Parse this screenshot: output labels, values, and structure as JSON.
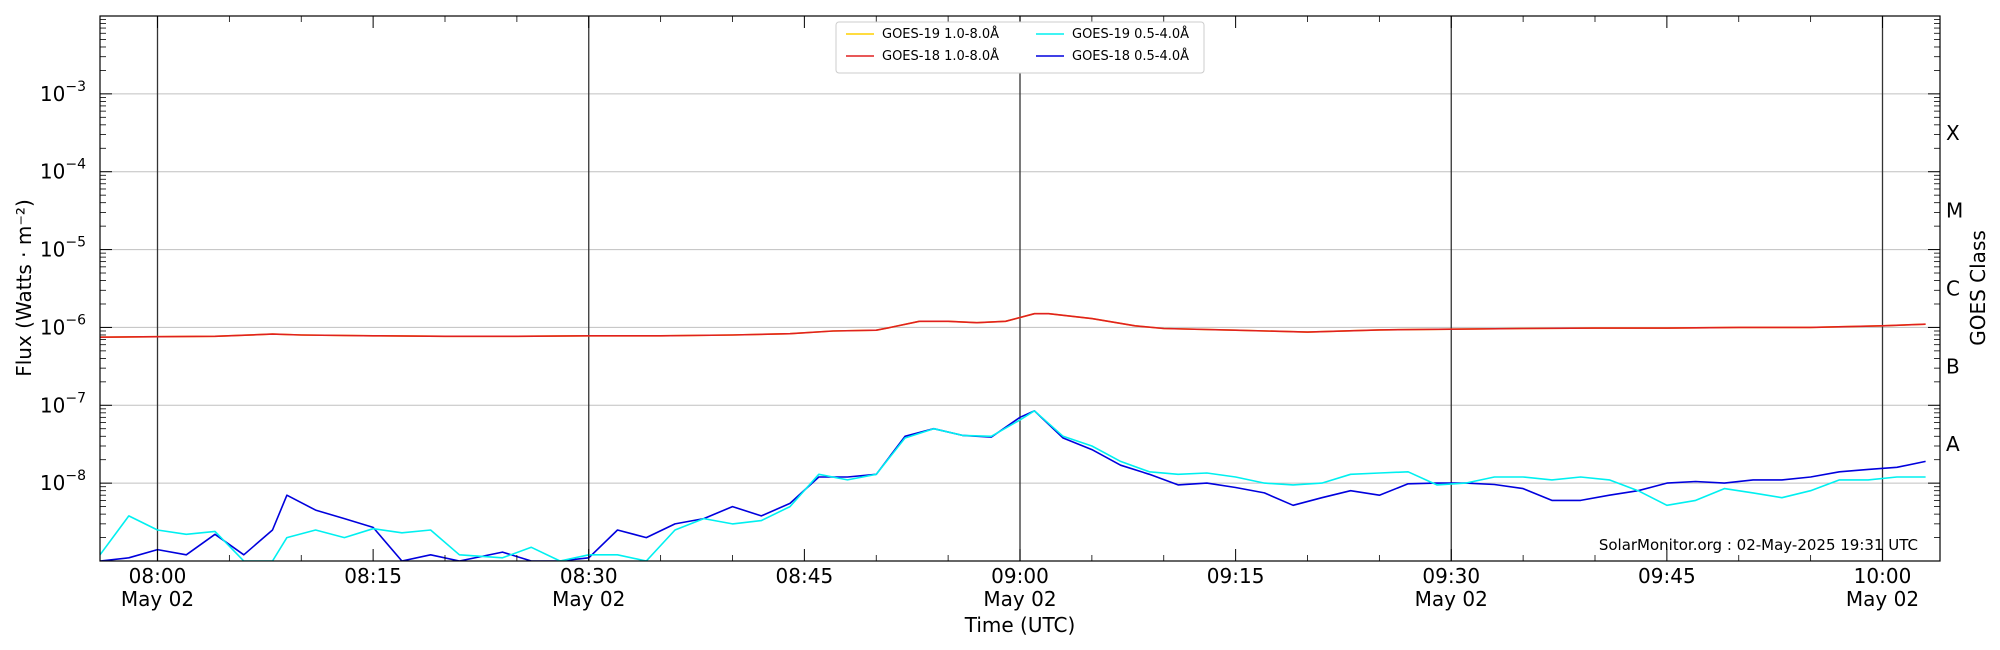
{
  "chart_data": {
    "type": "line",
    "xlabel": "Time (UTC)",
    "ylabel": "Flux (Watts · m⁻²)",
    "y2label": "GOES Class",
    "yscale": "log",
    "ylim": [
      1e-09,
      0.01
    ],
    "xlim": [
      "07:56",
      "10:04"
    ],
    "grid": "horizontal",
    "legend_placement": "top-center",
    "credit": "SolarMonitor.org : 02-May-2025 19:31 UTC",
    "yticks": [
      {
        "value": 0.001,
        "base": "10",
        "exp": "−3"
      },
      {
        "value": 0.0001,
        "base": "10",
        "exp": "−4"
      },
      {
        "value": 1e-05,
        "base": "10",
        "exp": "−5"
      },
      {
        "value": 1e-06,
        "base": "10",
        "exp": "−6"
      },
      {
        "value": 1e-07,
        "base": "10",
        "exp": "−7"
      },
      {
        "value": 1e-08,
        "base": "10",
        "exp": "−8"
      }
    ],
    "class_labels": [
      {
        "label": "X",
        "value": 0.000316
      },
      {
        "label": "M",
        "value": 3.16e-05
      },
      {
        "label": "C",
        "value": 3.16e-06
      },
      {
        "label": "B",
        "value": 3.16e-07
      },
      {
        "label": "A",
        "value": 3.16e-08
      }
    ],
    "xticks": [
      {
        "time": "08:00",
        "line1": "08:00",
        "line2": "May 02",
        "vline": true
      },
      {
        "time": "08:15",
        "line1": "08:15",
        "line2": "",
        "vline": false
      },
      {
        "time": "08:30",
        "line1": "08:30",
        "line2": "May 02",
        "vline": true
      },
      {
        "time": "08:45",
        "line1": "08:45",
        "line2": "",
        "vline": false
      },
      {
        "time": "09:00",
        "line1": "09:00",
        "line2": "May 02",
        "vline": true
      },
      {
        "time": "09:15",
        "line1": "09:15",
        "line2": "",
        "vline": false
      },
      {
        "time": "09:30",
        "line1": "09:30",
        "line2": "May 02",
        "vline": true
      },
      {
        "time": "09:45",
        "line1": "09:45",
        "line2": "",
        "vline": false
      },
      {
        "time": "10:00",
        "line1": "10:00",
        "line2": "May 02",
        "vline": true
      }
    ],
    "series": [
      {
        "name": "GOES-18 0.5-4.0Å",
        "color": "#0000dd",
        "x": [
          "07:56",
          "07:58",
          "08:00",
          "08:02",
          "08:04",
          "08:06",
          "08:08",
          "08:09",
          "08:11",
          "08:13",
          "08:15",
          "08:17",
          "08:19",
          "08:21",
          "08:24",
          "08:26",
          "08:28",
          "08:30",
          "08:32",
          "08:34",
          "08:36",
          "08:38",
          "08:40",
          "08:42",
          "08:44",
          "08:46",
          "08:48",
          "08:50",
          "08:52",
          "08:54",
          "08:56",
          "08:58",
          "09:00",
          "09:01",
          "09:03",
          "09:05",
          "09:07",
          "09:09",
          "09:11",
          "09:13",
          "09:15",
          "09:17",
          "09:19",
          "09:21",
          "09:23",
          "09:25",
          "09:27",
          "09:29",
          "09:31",
          "09:33",
          "09:35",
          "09:37",
          "09:39",
          "09:41",
          "09:43",
          "09:45",
          "09:47",
          "09:49",
          "09:51",
          "09:53",
          "09:55",
          "09:57",
          "09:59",
          "10:01",
          "10:03"
        ],
        "y": [
          1e-09,
          1.1e-09,
          1.4e-09,
          1.2e-09,
          2.2e-09,
          1.2e-09,
          2.5e-09,
          7e-09,
          4.5e-09,
          3.5e-09,
          2.7e-09,
          1e-09,
          1.2e-09,
          1e-09,
          1.3e-09,
          1e-09,
          1e-09,
          1.1e-09,
          2.5e-09,
          2e-09,
          3e-09,
          3.5e-09,
          5e-09,
          3.8e-09,
          5.5e-09,
          1.2e-08,
          1.2e-08,
          1.3e-08,
          4e-08,
          5e-08,
          4.1e-08,
          3.9e-08,
          7e-08,
          8.5e-08,
          3.8e-08,
          2.7e-08,
          1.7e-08,
          1.3e-08,
          9.5e-09,
          1e-08,
          8.8e-09,
          7.5e-09,
          5.2e-09,
          6.5e-09,
          8e-09,
          7e-09,
          9.8e-09,
          1e-08,
          1e-08,
          9.6e-09,
          8.5e-09,
          6e-09,
          6e-09,
          7e-09,
          8e-09,
          1e-08,
          1.05e-08,
          1e-08,
          1.1e-08,
          1.1e-08,
          1.2e-08,
          1.4e-08,
          1.5e-08,
          1.6e-08,
          1.9e-08
        ]
      },
      {
        "name": "GOES-19 0.5-4.0Å",
        "color": "#00f0f0",
        "x": [
          "07:56",
          "07:58",
          "08:00",
          "08:02",
          "08:04",
          "08:06",
          "08:08",
          "08:09",
          "08:11",
          "08:13",
          "08:15",
          "08:17",
          "08:19",
          "08:21",
          "08:24",
          "08:26",
          "08:28",
          "08:30",
          "08:32",
          "08:34",
          "08:36",
          "08:38",
          "08:40",
          "08:42",
          "08:44",
          "08:46",
          "08:48",
          "08:50",
          "08:52",
          "08:54",
          "08:56",
          "08:58",
          "09:00",
          "09:01",
          "09:03",
          "09:05",
          "09:07",
          "09:09",
          "09:11",
          "09:13",
          "09:15",
          "09:17",
          "09:19",
          "09:21",
          "09:23",
          "09:25",
          "09:27",
          "09:29",
          "09:31",
          "09:33",
          "09:35",
          "09:37",
          "09:39",
          "09:41",
          "09:43",
          "09:45",
          "09:47",
          "09:49",
          "09:51",
          "09:53",
          "09:55",
          "09:57",
          "09:59",
          "10:01",
          "10:03"
        ],
        "y": [
          1.2e-09,
          3.8e-09,
          2.5e-09,
          2.2e-09,
          2.4e-09,
          1e-09,
          1e-09,
          2e-09,
          2.5e-09,
          2e-09,
          2.6e-09,
          2.3e-09,
          2.5e-09,
          1.2e-09,
          1.1e-09,
          1.5e-09,
          1e-09,
          1.2e-09,
          1.2e-09,
          1e-09,
          2.5e-09,
          3.5e-09,
          3e-09,
          3.3e-09,
          5e-09,
          1.3e-08,
          1.1e-08,
          1.3e-08,
          3.8e-08,
          5e-08,
          4.1e-08,
          4e-08,
          6.5e-08,
          8.5e-08,
          4e-08,
          3e-08,
          1.9e-08,
          1.4e-08,
          1.3e-08,
          1.35e-08,
          1.2e-08,
          1e-08,
          9.5e-09,
          1e-08,
          1.3e-08,
          1.35e-08,
          1.4e-08,
          9.5e-09,
          1e-08,
          1.2e-08,
          1.2e-08,
          1.1e-08,
          1.2e-08,
          1.1e-08,
          8e-09,
          5.2e-09,
          6e-09,
          8.5e-09,
          7.5e-09,
          6.5e-09,
          8e-09,
          1.1e-08,
          1.1e-08,
          1.2e-08,
          1.2e-08
        ]
      },
      {
        "name": "GOES-19 1.0-8.0Å",
        "color": "#ffd000",
        "x": [
          "07:56",
          "08:00",
          "08:04",
          "08:08",
          "08:10",
          "08:15",
          "08:20",
          "08:25",
          "08:30",
          "08:35",
          "08:40",
          "08:44",
          "08:47",
          "08:50",
          "08:51",
          "08:53",
          "08:55",
          "08:57",
          "08:59",
          "09:01",
          "09:02",
          "09:05",
          "09:08",
          "09:10",
          "09:15",
          "09:20",
          "09:25",
          "09:30",
          "09:35",
          "09:40",
          "09:45",
          "09:50",
          "09:55",
          "10:00",
          "10:03"
        ],
        "y": [
          7.5e-07,
          7.6e-07,
          7.7e-07,
          8.2e-07,
          8e-07,
          7.8e-07,
          7.7e-07,
          7.7e-07,
          7.8e-07,
          7.8e-07,
          8e-07,
          8.3e-07,
          9e-07,
          9.2e-07,
          1e-06,
          1.2e-06,
          1.2e-06,
          1.15e-06,
          1.2e-06,
          1.5e-06,
          1.5e-06,
          1.3e-06,
          1.05e-06,
          9.7e-07,
          9.2e-07,
          8.7e-07,
          9.3e-07,
          9.5e-07,
          9.7e-07,
          9.8e-07,
          9.8e-07,
          1e-06,
          1e-06,
          1.05e-06,
          1.1e-06
        ]
      },
      {
        "name": "GOES-18 1.0-8.0Å",
        "color": "#e02020",
        "x": [
          "07:56",
          "08:00",
          "08:04",
          "08:08",
          "08:10",
          "08:15",
          "08:20",
          "08:25",
          "08:30",
          "08:35",
          "08:40",
          "08:44",
          "08:47",
          "08:50",
          "08:51",
          "08:53",
          "08:55",
          "08:57",
          "08:59",
          "09:01",
          "09:02",
          "09:05",
          "09:08",
          "09:10",
          "09:15",
          "09:20",
          "09:25",
          "09:30",
          "09:35",
          "09:40",
          "09:45",
          "09:50",
          "09:55",
          "10:00",
          "10:03"
        ],
        "y": [
          7.5e-07,
          7.6e-07,
          7.7e-07,
          8.2e-07,
          8e-07,
          7.8e-07,
          7.7e-07,
          7.7e-07,
          7.8e-07,
          7.8e-07,
          8e-07,
          8.3e-07,
          9e-07,
          9.2e-07,
          1e-06,
          1.2e-06,
          1.2e-06,
          1.15e-06,
          1.2e-06,
          1.5e-06,
          1.5e-06,
          1.3e-06,
          1.05e-06,
          9.7e-07,
          9.2e-07,
          8.7e-07,
          9.3e-07,
          9.5e-07,
          9.7e-07,
          9.8e-07,
          9.8e-07,
          1e-06,
          1e-06,
          1.05e-06,
          1.1e-06
        ]
      }
    ],
    "legend": [
      {
        "label": "GOES-19 1.0-8.0Å",
        "color": "#ffd000"
      },
      {
        "label": "GOES-18 1.0-8.0Å",
        "color": "#e02020"
      },
      {
        "label": "GOES-19 0.5-4.0Å",
        "color": "#00f0f0"
      },
      {
        "label": "GOES-18 0.5-4.0Å",
        "color": "#0000dd"
      }
    ]
  }
}
